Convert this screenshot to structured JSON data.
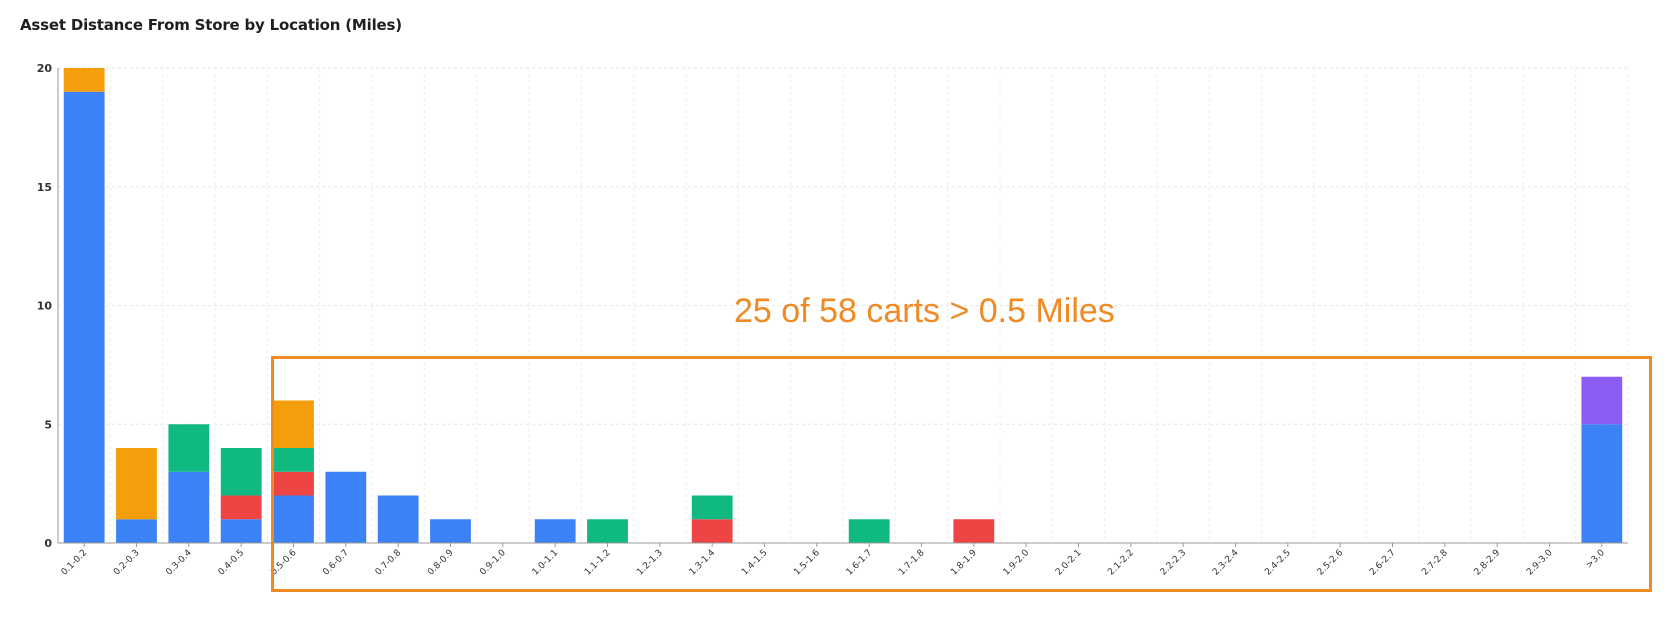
{
  "chart_data": {
    "type": "bar",
    "stacked": true,
    "title": "Asset Distance From Store by Location (Miles)",
    "xlabel": "",
    "ylabel": "",
    "ylim": [
      0,
      20
    ],
    "yticks": [
      0,
      5,
      10,
      15,
      20
    ],
    "grid": true,
    "legend": "none",
    "categories": [
      "0.1-0.2",
      "0.2-0.3",
      "0.3-0.4",
      "0.4-0.5",
      "0.5-0.6",
      "0.6-0.7",
      "0.7-0.8",
      "0.8-0.9",
      "0.9-1.0",
      "1.0-1.1",
      "1.1-1.2",
      "1.2-1.3",
      "1.3-1.4",
      "1.4-1.5",
      "1.5-1.6",
      "1.6-1.7",
      "1.7-1.8",
      "1.8-1.9",
      "1.9-2.0",
      "2.0-2.1",
      "2.1-2.2",
      "2.2-2.3",
      "2.3-2.4",
      "2.4-2.5",
      "2.5-2.6",
      "2.6-2.7",
      "2.7-2.8",
      "2.8-2.9",
      "2.9-3.0",
      ">3.0"
    ],
    "series": [
      {
        "color": "#3b82f6",
        "values": [
          19,
          1,
          3,
          1,
          2,
          3,
          2,
          1,
          0,
          1,
          0,
          0,
          0,
          0,
          0,
          0,
          0,
          0,
          0,
          0,
          0,
          0,
          0,
          0,
          0,
          0,
          0,
          0,
          0,
          5
        ]
      },
      {
        "color": "#ef4444",
        "values": [
          0,
          0,
          0,
          1,
          1,
          0,
          0,
          0,
          0,
          0,
          0,
          0,
          1,
          0,
          0,
          0,
          0,
          1,
          0,
          0,
          0,
          0,
          0,
          0,
          0,
          0,
          0,
          0,
          0,
          0
        ]
      },
      {
        "color": "#10b981",
        "values": [
          0,
          0,
          2,
          2,
          1,
          0,
          0,
          0,
          0,
          0,
          1,
          0,
          1,
          0,
          0,
          1,
          0,
          0,
          0,
          0,
          0,
          0,
          0,
          0,
          0,
          0,
          0,
          0,
          0,
          0
        ]
      },
      {
        "color": "#f59e0b",
        "values": [
          1,
          3,
          0,
          0,
          2,
          0,
          0,
          0,
          0,
          0,
          0,
          0,
          0,
          0,
          0,
          0,
          0,
          0,
          0,
          0,
          0,
          0,
          0,
          0,
          0,
          0,
          0,
          0,
          0,
          0
        ]
      },
      {
        "color": "#8b5cf6",
        "values": [
          0,
          0,
          0,
          0,
          0,
          0,
          0,
          0,
          0,
          0,
          0,
          0,
          0,
          0,
          0,
          0,
          0,
          0,
          0,
          0,
          0,
          0,
          0,
          0,
          0,
          0,
          0,
          0,
          0,
          2
        ]
      }
    ],
    "annotations": [
      {
        "text": "25 of 58 carts > 0.5 Miles",
        "color": "#f08a24"
      }
    ]
  }
}
